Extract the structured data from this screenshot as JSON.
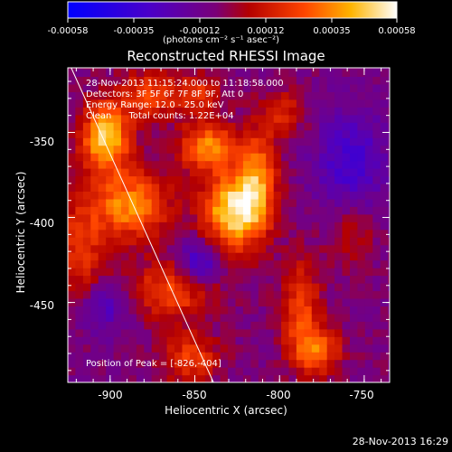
{
  "colorbar": {
    "ticks": [
      "-0.00058",
      "-0.00035",
      "-0.00012",
      "0.00012",
      "0.00035",
      "0.00058"
    ],
    "unit_text": "(photons cm",
    "unit_full": "(photons cm⁻² s⁻¹ asec⁻²)"
  },
  "title": "Reconstructed RHESSI Image",
  "overlay": {
    "line1": "28-Nov-2013 11:15:24.000 to 11:18:58.000",
    "line2": "Detectors: 3F 5F 6F 7F 8F 9F, Att 0",
    "line3": "Energy Range: 12.0 - 25.0 keV",
    "line4": "Clean      Total counts: 1.22E+04",
    "peak": "Position of Peak = [-826,-404]"
  },
  "axes": {
    "xlabel": "Heliocentric X (arcsec)",
    "ylabel": "Heliocentric Y (arcsec)",
    "xticks": [
      "-900",
      "-850",
      "-800",
      "-750"
    ],
    "yticks": [
      "-350",
      "-400",
      "-450"
    ]
  },
  "timestamp": "28-Nov-2013 16:29",
  "chart_data": {
    "type": "heatmap",
    "title": "Reconstructed RHESSI Image",
    "xlabel": "Heliocentric X (arcsec)",
    "ylabel": "Heliocentric Y (arcsec)",
    "xlim": [
      -925,
      -735
    ],
    "ylim": [
      -497,
      -312
    ],
    "colorbar_range": [
      -0.00058,
      0.00058
    ],
    "colorbar_label": "(photons cm^-2 s^-1 asec^-2)",
    "peak": [
      -826,
      -404
    ],
    "limb_line": {
      "x1": -923,
      "y1": -312,
      "x2": -839,
      "y2": -497
    },
    "sources": [
      {
        "x": -905,
        "y": -355,
        "amp": 0.95,
        "sx": 10,
        "sy": 14
      },
      {
        "x": -890,
        "y": -395,
        "amp": 0.75,
        "sx": 16,
        "sy": 14
      },
      {
        "x": -830,
        "y": -398,
        "amp": 1.0,
        "sx": 12,
        "sy": 16
      },
      {
        "x": -845,
        "y": -360,
        "amp": 0.7,
        "sx": 12,
        "sy": 10
      },
      {
        "x": -815,
        "y": -380,
        "amp": 0.65,
        "sx": 8,
        "sy": 20
      },
      {
        "x": -865,
        "y": -445,
        "amp": 0.55,
        "sx": 18,
        "sy": 12
      },
      {
        "x": -790,
        "y": -455,
        "amp": 0.5,
        "sx": 8,
        "sy": 20
      },
      {
        "x": -780,
        "y": -480,
        "amp": 0.6,
        "sx": 10,
        "sy": 10
      },
      {
        "x": -920,
        "y": -420,
        "amp": 0.45,
        "sx": 10,
        "sy": 20
      },
      {
        "x": -880,
        "y": -330,
        "amp": 0.5,
        "sx": 12,
        "sy": 10
      },
      {
        "x": -850,
        "y": -330,
        "amp": 0.45,
        "sx": 10,
        "sy": 8
      },
      {
        "x": -800,
        "y": -340,
        "amp": 0.35,
        "sx": 10,
        "sy": 10
      },
      {
        "x": -855,
        "y": -485,
        "amp": 0.5,
        "sx": 12,
        "sy": 10
      },
      {
        "x": -760,
        "y": -410,
        "amp": 0.3,
        "sx": 10,
        "sy": 14
      },
      {
        "x": -760,
        "y": -370,
        "amp": -0.45,
        "sx": 14,
        "sy": 22
      },
      {
        "x": -850,
        "y": -430,
        "amp": -0.55,
        "sx": 8,
        "sy": 10
      },
      {
        "x": -905,
        "y": -455,
        "amp": -0.35,
        "sx": 10,
        "sy": 10
      }
    ]
  }
}
